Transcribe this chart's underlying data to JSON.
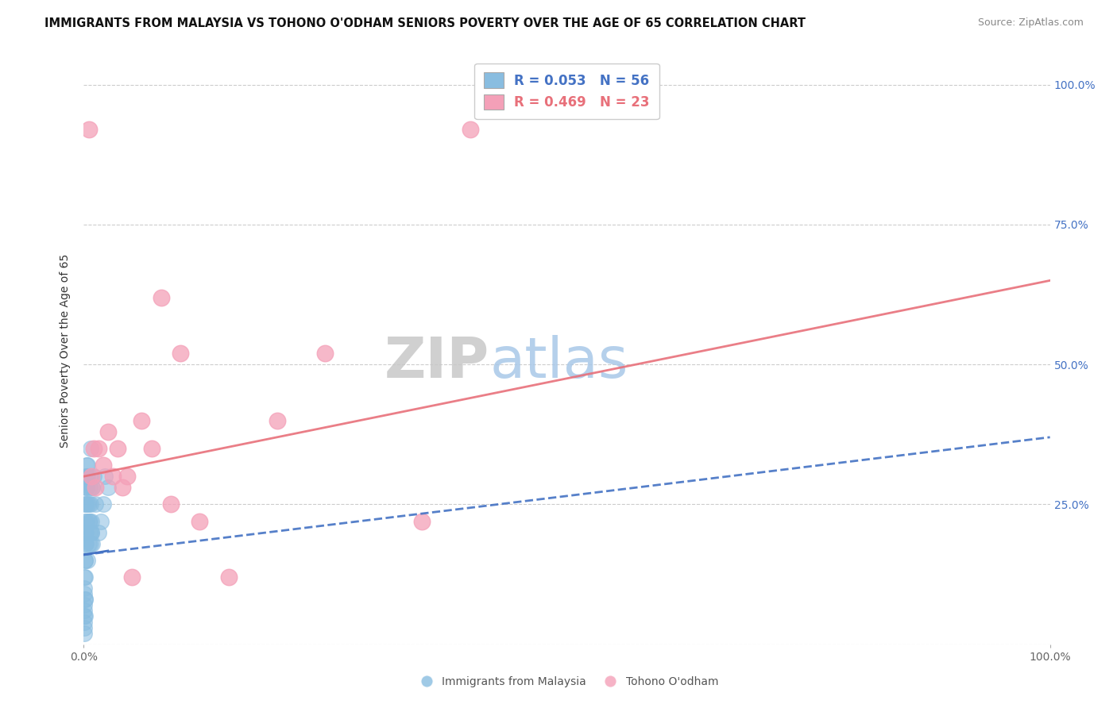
{
  "title": "IMMIGRANTS FROM MALAYSIA VS TOHONO O'ODHAM SENIORS POVERTY OVER THE AGE OF 65 CORRELATION CHART",
  "source": "Source: ZipAtlas.com",
  "ylabel": "Seniors Poverty Over the Age of 65",
  "legend_bottom": [
    "Immigrants from Malaysia",
    "Tohono O'odham"
  ],
  "blue_R": "R = 0.053",
  "blue_N": "N = 56",
  "pink_R": "R = 0.469",
  "pink_N": "N = 23",
  "blue_color": "#89bde0",
  "blue_line_color": "#4472c4",
  "pink_color": "#f4a0b8",
  "pink_line_color": "#e8707a",
  "background_color": "#ffffff",
  "grid_color": "#cccccc",
  "blue_scatter_x": [
    0.0005,
    0.0008,
    0.001,
    0.0012,
    0.0015,
    0.002,
    0.002,
    0.0025,
    0.003,
    0.003,
    0.003,
    0.004,
    0.004,
    0.004,
    0.005,
    0.005,
    0.006,
    0.006,
    0.006,
    0.007,
    0.007,
    0.008,
    0.008,
    0.009,
    0.009,
    0.001,
    0.001,
    0.0005,
    0.0003,
    0.0003,
    0.0002,
    0.0004,
    0.0006,
    0.0007,
    0.0009,
    0.001,
    0.0011,
    0.0013,
    0.0015,
    0.002,
    0.0025,
    0.003,
    0.003,
    0.004,
    0.005,
    0.006,
    0.007,
    0.008,
    0.009,
    0.01,
    0.012,
    0.015,
    0.018,
    0.02,
    0.022,
    0.025
  ],
  "blue_scatter_y": [
    0.05,
    0.1,
    0.08,
    0.12,
    0.15,
    0.2,
    0.25,
    0.18,
    0.22,
    0.28,
    0.3,
    0.25,
    0.32,
    0.15,
    0.18,
    0.22,
    0.2,
    0.28,
    0.3,
    0.25,
    0.35,
    0.2,
    0.22,
    0.18,
    0.28,
    0.05,
    0.08,
    0.03,
    0.04,
    0.06,
    0.02,
    0.07,
    0.09,
    0.12,
    0.15,
    0.18,
    0.2,
    0.22,
    0.25,
    0.28,
    0.3,
    0.28,
    0.32,
    0.3,
    0.25,
    0.22,
    0.18,
    0.2,
    0.28,
    0.3,
    0.25,
    0.2,
    0.22,
    0.25,
    0.3,
    0.28
  ],
  "pink_scatter_x": [
    0.005,
    0.008,
    0.01,
    0.012,
    0.015,
    0.02,
    0.025,
    0.03,
    0.035,
    0.04,
    0.045,
    0.05,
    0.06,
    0.07,
    0.08,
    0.09,
    0.1,
    0.12,
    0.15,
    0.2,
    0.25,
    0.35,
    0.4
  ],
  "pink_scatter_y": [
    0.92,
    0.3,
    0.35,
    0.28,
    0.35,
    0.32,
    0.38,
    0.3,
    0.35,
    0.28,
    0.3,
    0.12,
    0.4,
    0.35,
    0.62,
    0.25,
    0.52,
    0.22,
    0.12,
    0.4,
    0.52,
    0.22,
    0.92
  ],
  "blue_trend_x": [
    0.0,
    1.0
  ],
  "blue_trend_y": [
    0.16,
    0.37
  ],
  "pink_trend_x": [
    0.0,
    1.0
  ],
  "pink_trend_y": [
    0.3,
    0.65
  ],
  "xlim": [
    0.0,
    1.0
  ],
  "ylim": [
    0.0,
    1.05
  ],
  "yticks": [
    0.0,
    0.25,
    0.5,
    0.75,
    1.0
  ],
  "ytick_labels_right": [
    "",
    "25.0%",
    "50.0%",
    "75.0%",
    "100.0%"
  ],
  "xticks": [
    0.0,
    1.0
  ],
  "xtick_labels": [
    "0.0%",
    "100.0%"
  ]
}
